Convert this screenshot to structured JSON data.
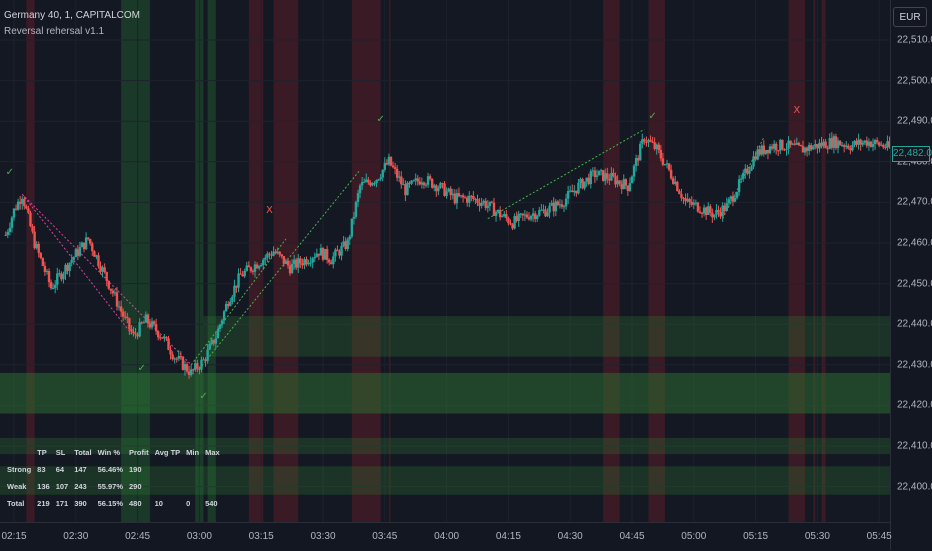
{
  "legend": {
    "symbol": "Germany 40, 1, CAPITALCOM",
    "indicator": "Reversal rehersal v1.1"
  },
  "price_axis": {
    "currency": "EUR",
    "last_price": "22,482.0",
    "labels": [
      "22,510.0",
      "22,500.0",
      "22,490.0",
      "22,480.0",
      "22,470.0",
      "22,460.0",
      "22,450.0",
      "22,440.0",
      "22,430.0",
      "22,420.0",
      "22,410.0",
      "22,400.0"
    ]
  },
  "time_axis": {
    "labels": [
      "02:15",
      "02:30",
      "02:45",
      "03:00",
      "03:15",
      "03:30",
      "03:45",
      "04:00",
      "04:15",
      "04:30",
      "04:45",
      "05:00",
      "05:15",
      "05:30",
      "05:45"
    ]
  },
  "stats": {
    "headers": [
      "",
      "TP",
      "SL",
      "Total",
      "Win %",
      "Profit",
      "Avg TP",
      "Min",
      "Max"
    ],
    "rows": [
      [
        "Strong",
        "83",
        "64",
        "147",
        "56.46%",
        "190",
        "",
        "",
        ""
      ],
      [
        "Weak",
        "136",
        "107",
        "243",
        "55.97%",
        "290",
        "",
        "",
        ""
      ],
      [
        "Total",
        "219",
        "171",
        "390",
        "56.15%",
        "480",
        "10",
        "0",
        "540"
      ]
    ]
  },
  "markers": {
    "check": "✓",
    "cross": "X"
  },
  "colors": {
    "background": "#131722",
    "up_candle": "#26a69a",
    "down_candle": "#ef5350",
    "green_band": "#1f5a2e",
    "red_band": "#5a1e26",
    "grid": "#1e222d"
  },
  "chart_data": {
    "type": "candlestick",
    "symbol": "Germany 40",
    "interval": "1",
    "ylim": [
      22395,
      22515
    ],
    "x": [
      "02:15",
      "02:30",
      "02:45",
      "03:00",
      "03:15",
      "03:30",
      "03:45",
      "04:00",
      "04:15",
      "04:30",
      "04:45",
      "05:00",
      "05:15",
      "05:30",
      "05:45"
    ],
    "path_close": [
      [
        "02:13",
        22462
      ],
      [
        "02:15",
        22468
      ],
      [
        "02:17",
        22472
      ],
      [
        "02:20",
        22460
      ],
      [
        "02:24",
        22449
      ],
      [
        "02:29",
        22456
      ],
      [
        "02:33",
        22461
      ],
      [
        "02:38",
        22450
      ],
      [
        "02:42",
        22441
      ],
      [
        "02:44",
        22437
      ],
      [
        "02:47",
        22441
      ],
      [
        "02:51",
        22437
      ],
      [
        "02:54",
        22432
      ],
      [
        "02:58",
        22428
      ],
      [
        "03:01",
        22431
      ],
      [
        "03:04",
        22437
      ],
      [
        "03:07",
        22446
      ],
      [
        "03:10",
        22452
      ],
      [
        "03:14",
        22455
      ],
      [
        "03:18",
        22458
      ],
      [
        "03:22",
        22454
      ],
      [
        "03:26",
        22456
      ],
      [
        "03:29",
        22458
      ],
      [
        "03:32",
        22456
      ],
      [
        "03:36",
        22460
      ],
      [
        "03:39",
        22474
      ],
      [
        "03:43",
        22476
      ],
      [
        "03:46",
        22480
      ],
      [
        "03:50",
        22473
      ],
      [
        "03:54",
        22476
      ],
      [
        "03:58",
        22474
      ],
      [
        "04:02",
        22471
      ],
      [
        "04:06",
        22471
      ],
      [
        "04:09",
        22470
      ],
      [
        "04:13",
        22467
      ],
      [
        "04:16",
        22465
      ],
      [
        "04:20",
        22467
      ],
      [
        "04:24",
        22468
      ],
      [
        "04:28",
        22470
      ],
      [
        "04:32",
        22474
      ],
      [
        "04:36",
        22477
      ],
      [
        "04:40",
        22476
      ],
      [
        "04:44",
        22474
      ],
      [
        "04:48",
        22486
      ],
      [
        "04:51",
        22483
      ],
      [
        "04:55",
        22476
      ],
      [
        "04:58",
        22470
      ],
      [
        "05:01",
        22469
      ],
      [
        "05:05",
        22467
      ],
      [
        "05:08",
        22469
      ],
      [
        "05:12",
        22476
      ],
      [
        "05:15",
        22482
      ],
      [
        "05:19",
        22484
      ],
      [
        "05:22",
        22484
      ],
      [
        "05:26",
        22483
      ],
      [
        "05:30",
        22484
      ],
      [
        "05:34",
        22485
      ],
      [
        "05:38",
        22484
      ],
      [
        "05:42",
        22485
      ],
      [
        "05:46",
        22484
      ],
      [
        "05:51",
        22482
      ]
    ],
    "zones": [
      {
        "type": "demand",
        "from": 22432,
        "to": 22442
      },
      {
        "type": "demand",
        "from": 22418,
        "to": 22428
      },
      {
        "type": "demand",
        "from": 22408,
        "to": 22412
      },
      {
        "type": "demand",
        "from": 22398,
        "to": 22405
      }
    ],
    "signals": [
      {
        "time": "02:14",
        "kind": "check"
      },
      {
        "time": "02:46",
        "kind": "check"
      },
      {
        "time": "03:01",
        "kind": "check"
      },
      {
        "time": "03:17",
        "kind": "cross"
      },
      {
        "time": "03:44",
        "kind": "check"
      },
      {
        "time": "04:50",
        "kind": "check"
      },
      {
        "time": "05:25",
        "kind": "cross"
      }
    ]
  }
}
